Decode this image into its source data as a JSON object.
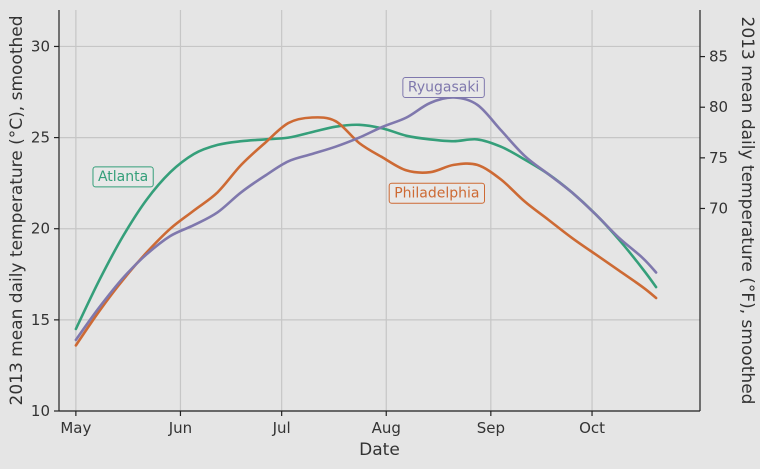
{
  "chart_data": {
    "type": "line",
    "title": "",
    "xlabel": "Date",
    "ylabel": "2013 mean daily temperature (°C), smoothed",
    "ylabel_right": "2013 mean daily temperature (°F), smoothed",
    "x_ticks": [
      {
        "date": "2013-05-01",
        "label": "May"
      },
      {
        "date": "2013-06-01",
        "label": "Jun"
      },
      {
        "date": "2013-07-01",
        "label": "Jul"
      },
      {
        "date": "2013-08-01",
        "label": "Aug"
      },
      {
        "date": "2013-09-01",
        "label": "Sep"
      },
      {
        "date": "2013-10-01",
        "label": "Oct"
      }
    ],
    "xlim": [
      "2013-04-26",
      "2013-11-02"
    ],
    "ylim": [
      10,
      32
    ],
    "y_ticks": [
      10,
      15,
      20,
      25,
      30
    ],
    "y_ticks_right": [
      70,
      75,
      80,
      85
    ],
    "grid": true,
    "legend": "direct labels on lines",
    "series": [
      {
        "name": "Atlanta",
        "color": "#359f7a",
        "label_pos": {
          "date": "2013-05-15",
          "value": 22.9
        },
        "points": [
          [
            "2013-05-01",
            14.5
          ],
          [
            "2013-05-08",
            17.2
          ],
          [
            "2013-05-15",
            19.6
          ],
          [
            "2013-05-22",
            21.6
          ],
          [
            "2013-05-29",
            23.1
          ],
          [
            "2013-06-05",
            24.1
          ],
          [
            "2013-06-12",
            24.6
          ],
          [
            "2013-06-19",
            24.8
          ],
          [
            "2013-06-26",
            24.9
          ],
          [
            "2013-07-03",
            25.0
          ],
          [
            "2013-07-10",
            25.3
          ],
          [
            "2013-07-17",
            25.6
          ],
          [
            "2013-07-24",
            25.7
          ],
          [
            "2013-07-31",
            25.5
          ],
          [
            "2013-08-07",
            25.1
          ],
          [
            "2013-08-14",
            24.9
          ],
          [
            "2013-08-21",
            24.8
          ],
          [
            "2013-08-28",
            24.9
          ],
          [
            "2013-09-04",
            24.5
          ],
          [
            "2013-09-11",
            23.8
          ],
          [
            "2013-09-18",
            23.0
          ],
          [
            "2013-09-25",
            22.0
          ],
          [
            "2013-10-02",
            20.8
          ],
          [
            "2013-10-09",
            19.4
          ],
          [
            "2013-10-16",
            17.8
          ],
          [
            "2013-10-20",
            16.8
          ]
        ]
      },
      {
        "name": "Philadelphia",
        "color": "#cd6a34",
        "label_pos": {
          "date": "2013-08-16",
          "value": 22.0
        },
        "points": [
          [
            "2013-05-01",
            13.6
          ],
          [
            "2013-05-08",
            15.5
          ],
          [
            "2013-05-15",
            17.2
          ],
          [
            "2013-05-22",
            18.7
          ],
          [
            "2013-05-29",
            20.0
          ],
          [
            "2013-06-05",
            21.0
          ],
          [
            "2013-06-12",
            22.0
          ],
          [
            "2013-06-19",
            23.5
          ],
          [
            "2013-06-26",
            24.7
          ],
          [
            "2013-07-03",
            25.8
          ],
          [
            "2013-07-10",
            26.1
          ],
          [
            "2013-07-17",
            25.9
          ],
          [
            "2013-07-24",
            24.7
          ],
          [
            "2013-07-31",
            23.9
          ],
          [
            "2013-08-07",
            23.2
          ],
          [
            "2013-08-14",
            23.1
          ],
          [
            "2013-08-21",
            23.5
          ],
          [
            "2013-08-28",
            23.5
          ],
          [
            "2013-09-04",
            22.7
          ],
          [
            "2013-09-11",
            21.5
          ],
          [
            "2013-09-18",
            20.5
          ],
          [
            "2013-09-25",
            19.5
          ],
          [
            "2013-10-02",
            18.6
          ],
          [
            "2013-10-09",
            17.7
          ],
          [
            "2013-10-16",
            16.8
          ],
          [
            "2013-10-20",
            16.2
          ]
        ]
      },
      {
        "name": "Ryugasaki",
        "color": "#7f78ad",
        "label_pos": {
          "date": "2013-08-18",
          "value": 27.8
        },
        "points": [
          [
            "2013-05-01",
            13.9
          ],
          [
            "2013-05-08",
            15.7
          ],
          [
            "2013-05-15",
            17.3
          ],
          [
            "2013-05-22",
            18.6
          ],
          [
            "2013-05-29",
            19.6
          ],
          [
            "2013-06-05",
            20.2
          ],
          [
            "2013-06-12",
            20.9
          ],
          [
            "2013-06-19",
            22.0
          ],
          [
            "2013-06-26",
            22.9
          ],
          [
            "2013-07-03",
            23.7
          ],
          [
            "2013-07-10",
            24.1
          ],
          [
            "2013-07-17",
            24.5
          ],
          [
            "2013-07-24",
            25.0
          ],
          [
            "2013-07-31",
            25.6
          ],
          [
            "2013-08-07",
            26.1
          ],
          [
            "2013-08-14",
            26.9
          ],
          [
            "2013-08-21",
            27.2
          ],
          [
            "2013-08-28",
            26.8
          ],
          [
            "2013-09-04",
            25.4
          ],
          [
            "2013-09-11",
            24.0
          ],
          [
            "2013-09-18",
            23.0
          ],
          [
            "2013-09-25",
            22.0
          ],
          [
            "2013-10-02",
            20.8
          ],
          [
            "2013-10-09",
            19.5
          ],
          [
            "2013-10-16",
            18.4
          ],
          [
            "2013-10-20",
            17.6
          ]
        ]
      }
    ]
  }
}
